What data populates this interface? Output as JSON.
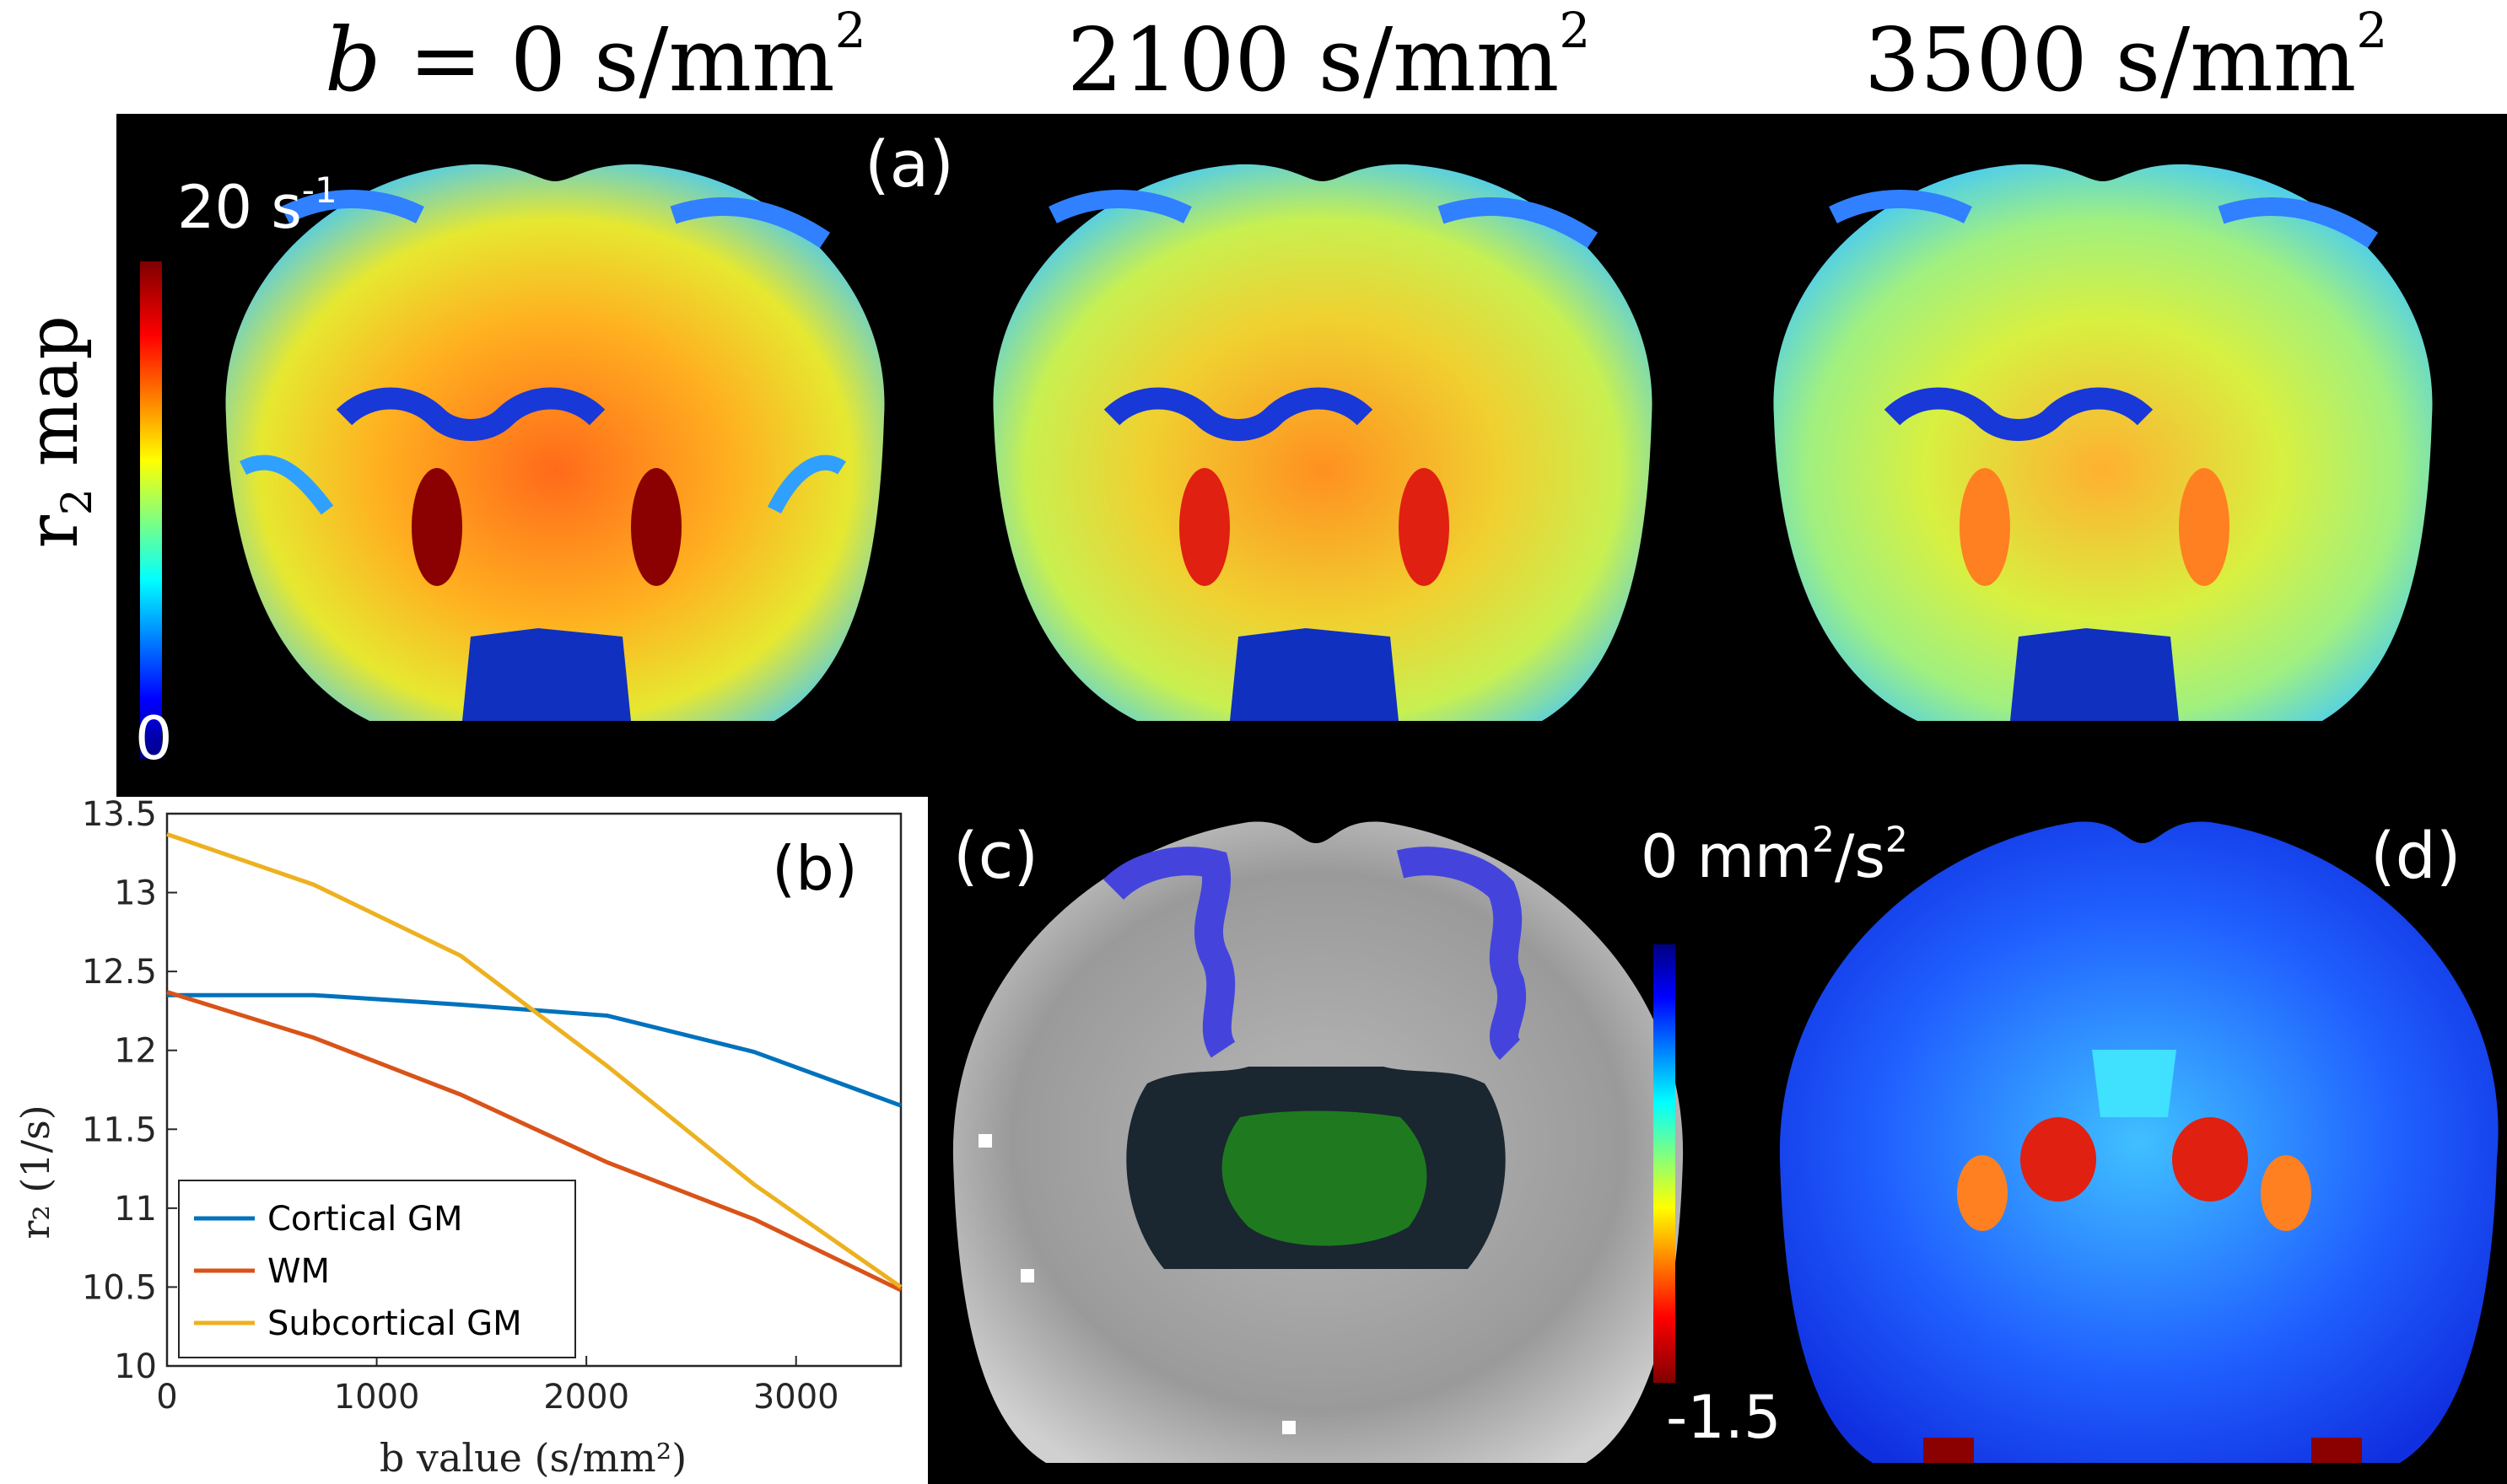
{
  "column_titles": {
    "b0": {
      "prefix": "b = 0 s/mm",
      "sup": "2"
    },
    "b2100": {
      "prefix": "2100 s/mm",
      "sup": "2"
    },
    "b3500": {
      "prefix": "3500 s/mm",
      "sup": "2"
    }
  },
  "row_label": {
    "main": "r",
    "sub": "2",
    "tail": " map"
  },
  "panels": {
    "a": "(a)",
    "b": "(b)",
    "c": "(c)",
    "d": "(d)"
  },
  "colorbar_a": {
    "max_label": "20 s",
    "max_sup": "-1",
    "min_label": "0"
  },
  "colorbar_d": {
    "max_label": "0 mm",
    "max_sup1": "2",
    "mid": "/s",
    "max_sup2": "2",
    "min_label": "-1.5"
  },
  "colors": {
    "cortical_gm": "#0072BD",
    "wm": "#D95319",
    "subcortical_gm": "#EDB120",
    "seg_cortical": "#4444dd",
    "seg_wm": "#1a2630",
    "seg_subcortical": "#1f7a1f"
  },
  "chart_data": {
    "type": "line",
    "title": "(b)",
    "xlabel": "b value (s/mm²)",
    "ylabel": "r₂ (1/s)",
    "xlim": [
      0,
      3500
    ],
    "ylim": [
      10,
      13.5
    ],
    "x_ticks": [
      "0",
      "1000",
      "2000",
      "3000"
    ],
    "y_ticks": [
      "10",
      "10.5",
      "11",
      "11.5",
      "12",
      "12.5",
      "13",
      "13.5"
    ],
    "x": [
      0,
      700,
      1400,
      2100,
      2800,
      3500
    ],
    "series": [
      {
        "name": "Cortical GM",
        "values": [
          12.35,
          12.35,
          12.29,
          12.22,
          11.99,
          11.65
        ]
      },
      {
        "name": "WM",
        "values": [
          12.37,
          12.08,
          11.72,
          11.29,
          10.93,
          10.48
        ]
      },
      {
        "name": "Subcortical GM",
        "values": [
          13.37,
          13.05,
          12.6,
          11.9,
          11.15,
          10.5
        ]
      }
    ],
    "legend": [
      "Cortical GM",
      "WM",
      "Subcortical GM"
    ],
    "legend_position": "bottom-left"
  }
}
